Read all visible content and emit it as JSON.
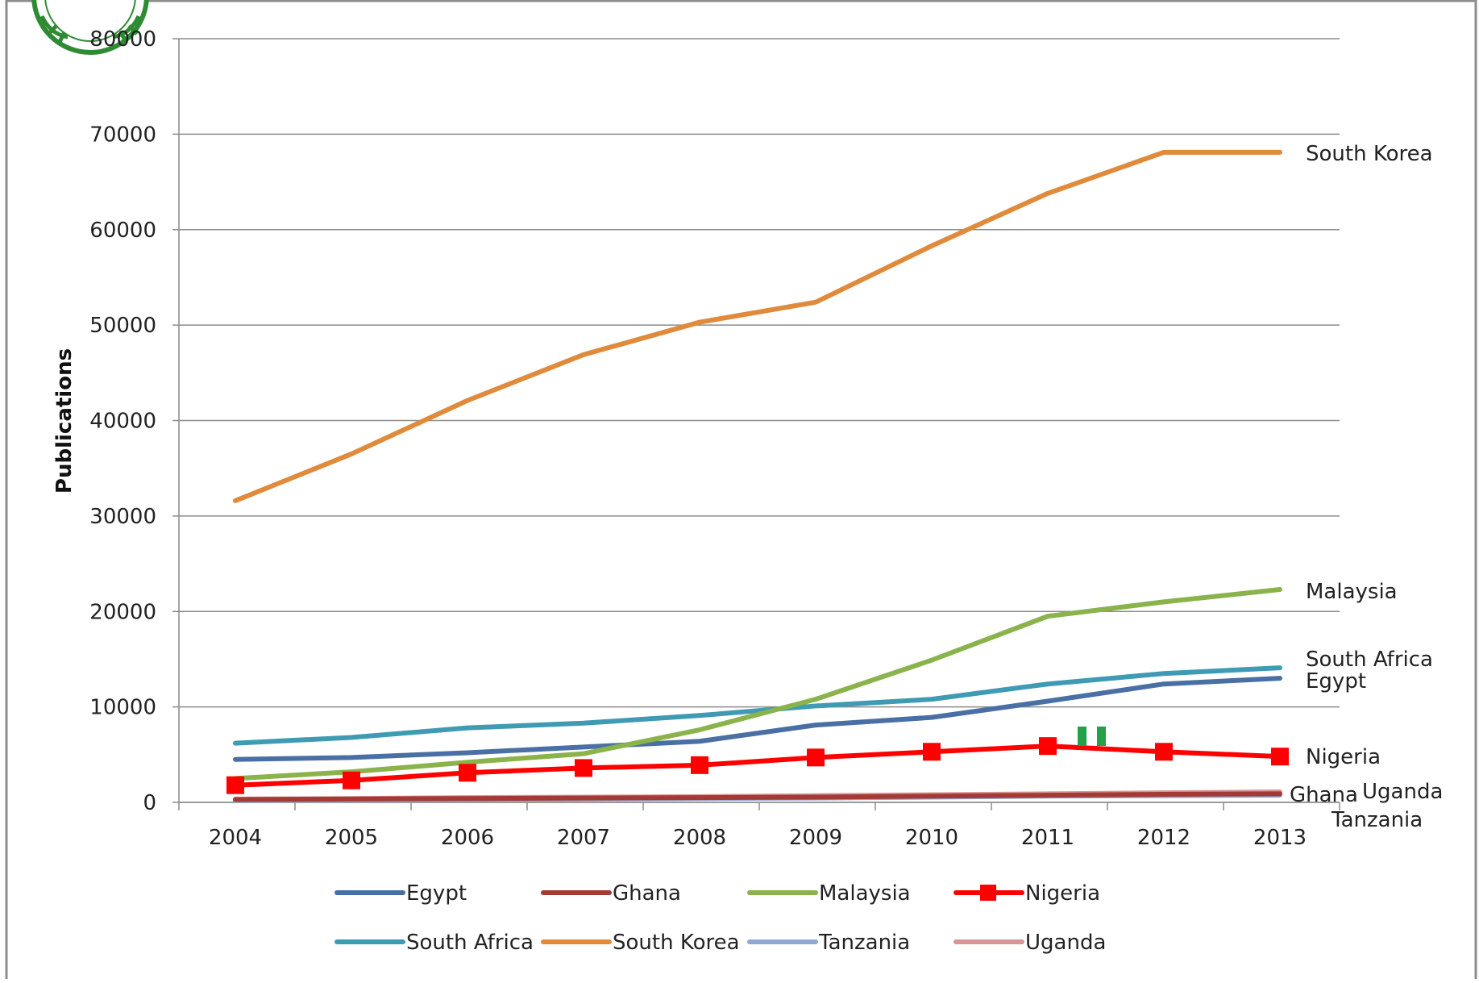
{
  "chart_data": {
    "type": "line",
    "title": "",
    "xlabel": "",
    "ylabel": "Publications",
    "ylim": [
      0,
      80000
    ],
    "yticks": [
      0,
      10000,
      20000,
      30000,
      40000,
      50000,
      60000,
      70000,
      80000
    ],
    "ytick_labels": [
      "0",
      "10000",
      "20000",
      "30000",
      "40000",
      "50000",
      "60000",
      "70000",
      "80000"
    ],
    "categories": [
      "2004",
      "2005",
      "2006",
      "2007",
      "2008",
      "2009",
      "2010",
      "2011",
      "2012",
      "2013"
    ],
    "grid": "horizontal",
    "legend_position": "bottom",
    "series": [
      {
        "name": "Egypt",
        "color": "#4a6fa5",
        "marker": "none",
        "label_end": "Egypt",
        "values": [
          4500,
          4700,
          5200,
          5800,
          6400,
          8100,
          8900,
          10600,
          12400,
          13000
        ]
      },
      {
        "name": "Ghana",
        "color": "#a33a35",
        "marker": "none",
        "label_end": "Ghana",
        "values": [
          300,
          350,
          400,
          450,
          500,
          550,
          650,
          750,
          850,
          900
        ]
      },
      {
        "name": "Malaysia",
        "color": "#8bb34c",
        "marker": "none",
        "label_end": "Malaysia",
        "values": [
          2500,
          3200,
          4200,
          5100,
          7600,
          10800,
          14900,
          19500,
          21000,
          22300
        ]
      },
      {
        "name": "Nigeria",
        "color": "#ff0000",
        "marker": "square",
        "label_end": "Nigeria",
        "values": [
          1800,
          2300,
          3100,
          3600,
          3900,
          4700,
          5300,
          5900,
          5300,
          4800
        ]
      },
      {
        "name": "South Africa",
        "color": "#3f9bb4",
        "marker": "none",
        "label_end": "South Africa",
        "values": [
          6200,
          6800,
          7800,
          8300,
          9100,
          10100,
          10800,
          12400,
          13500,
          14100
        ]
      },
      {
        "name": "South Korea",
        "color": "#e08a3c",
        "marker": "none",
        "label_end": "South Korea",
        "values": [
          31600,
          36500,
          42100,
          46900,
          50300,
          52400,
          58300,
          63800,
          68100,
          68100
        ]
      },
      {
        "name": "Tanzania",
        "color": "#8fa9d3",
        "marker": "none",
        "label_end": "Tanzania",
        "values": [
          200,
          250,
          300,
          350,
          400,
          450,
          550,
          650,
          700,
          750
        ]
      },
      {
        "name": "Uganda",
        "color": "#d99594",
        "marker": "none",
        "label_end": "Uganda",
        "values": [
          350,
          400,
          500,
          550,
          600,
          700,
          800,
          900,
          1000,
          1100
        ]
      }
    ]
  }
}
